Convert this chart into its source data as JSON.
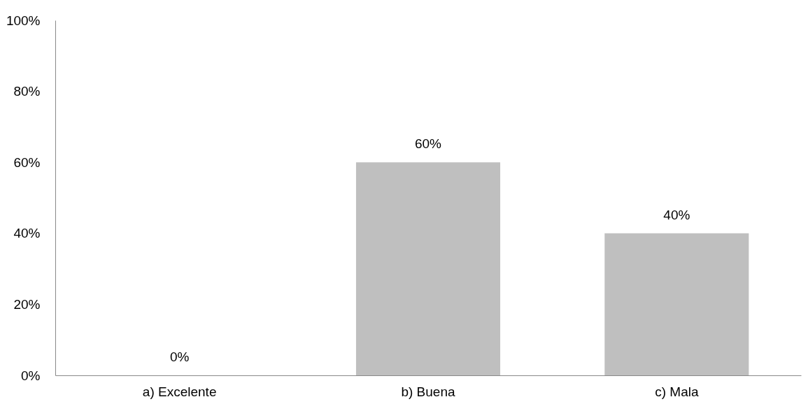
{
  "chart_data": {
    "type": "bar",
    "categories": [
      "a) Excelente",
      "b) Buena",
      "c) Mala"
    ],
    "values": [
      0,
      60,
      40
    ],
    "color": "#bfbfbf",
    "value_labels": [
      "0%",
      "60%",
      "40%"
    ],
    "ylim": [
      0,
      100
    ],
    "yticks": [
      {
        "value": 0,
        "label": "0%"
      },
      {
        "value": 20,
        "label": "20%"
      },
      {
        "value": 40,
        "label": "40%"
      },
      {
        "value": 60,
        "label": "60%"
      },
      {
        "value": 80,
        "label": "80%"
      },
      {
        "value": 100,
        "label": "100%"
      }
    ],
    "grid": false
  }
}
